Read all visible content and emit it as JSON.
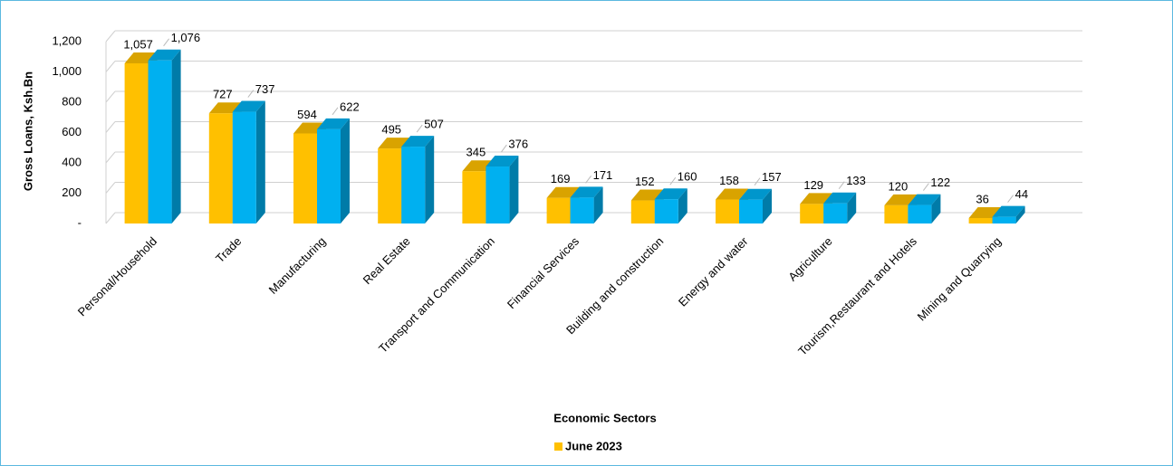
{
  "chart_data": {
    "type": "bar3d",
    "x_label": "Economic Sectors",
    "y_label": "Gross Loans, Ksh.Bn",
    "categories": [
      "Personal/Household",
      "Trade",
      "Manufacturing",
      "Real Estate",
      "Transport and Communication",
      "Financial Services",
      "Building and construction",
      "Energy and water",
      "Agriculture",
      "Tourism,Restaurant and Hotels",
      "Mining and Quarrying"
    ],
    "series": [
      {
        "name": "June 2023",
        "color": "#ffc000",
        "values": [
          1057,
          727,
          594,
          495,
          345,
          169,
          152,
          158,
          129,
          120,
          36
        ],
        "value_labels": [
          "1,057",
          "727",
          "594",
          "495",
          "345",
          "169",
          "152",
          "158",
          "129",
          "120",
          "36"
        ]
      },
      {
        "color": "#00b0f0",
        "values": [
          1076,
          737,
          622,
          507,
          376,
          171,
          160,
          157,
          133,
          122,
          44
        ],
        "value_labels": [
          "1,076",
          "737",
          "622",
          "507",
          "376",
          "171",
          "160",
          "157",
          "133",
          "122",
          "44"
        ]
      }
    ],
    "ylim": [
      0,
      1200
    ],
    "yticks": [
      {
        "value": 0,
        "label": "-"
      },
      200,
      400,
      600,
      800,
      {
        "value": 1000,
        "label": "1,000"
      },
      {
        "value": 1200,
        "label": "1,200"
      }
    ],
    "grid": true,
    "legend": "bottom"
  }
}
